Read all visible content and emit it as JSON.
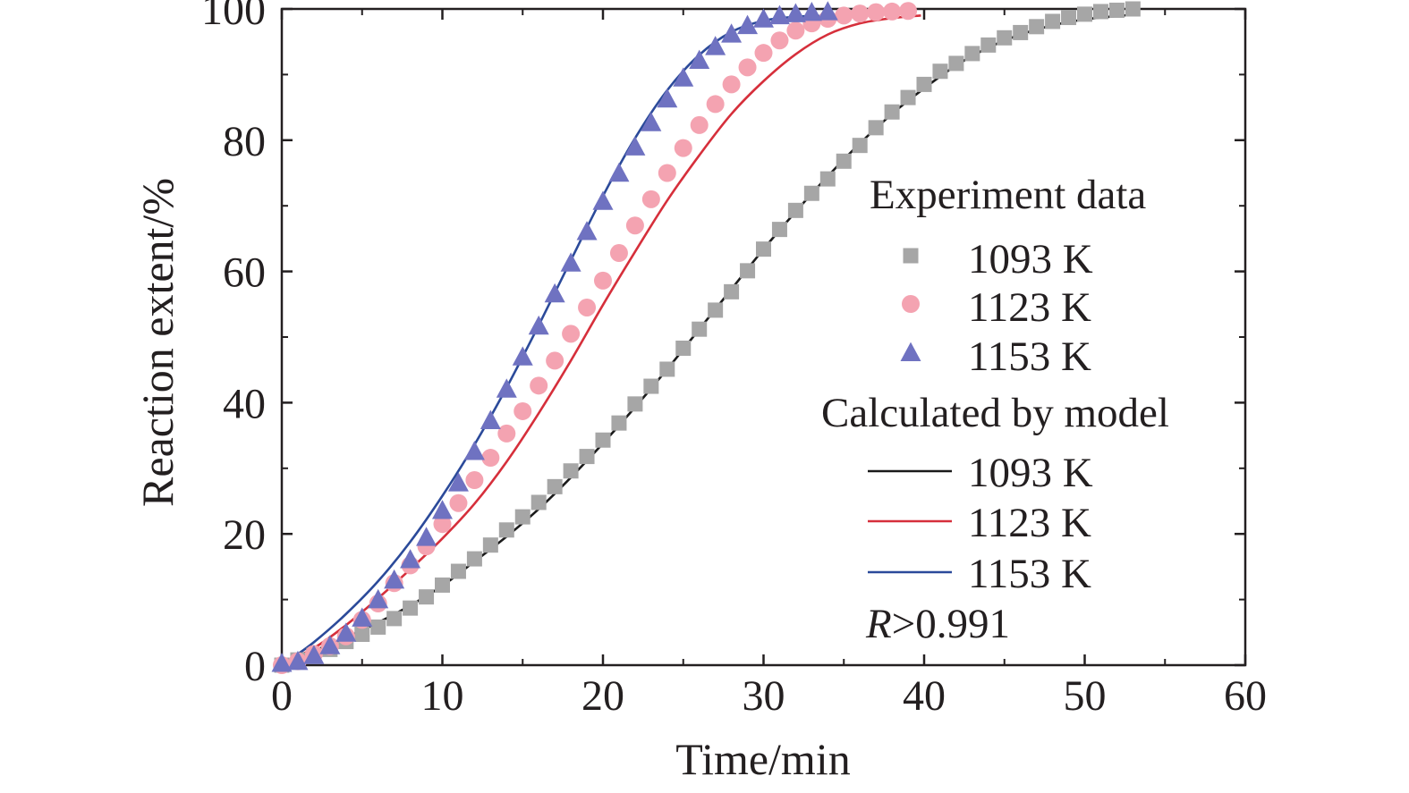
{
  "chart_data": {
    "type": "scatter",
    "xlabel": "Time/min",
    "ylabel": "Reaction extent/%",
    "xlim": [
      0,
      60
    ],
    "ylim": [
      0,
      100
    ],
    "xticks": [
      0,
      10,
      20,
      30,
      40,
      50,
      60
    ],
    "yticks": [
      0,
      20,
      40,
      60,
      80,
      100
    ],
    "grid": false,
    "legend_position": "right",
    "legend": {
      "experiment_heading": "Experiment data",
      "model_heading": "Calculated by model",
      "r_symbol": "R",
      "r_value": ">0.991"
    },
    "experiment_series": [
      {
        "name": "1093 K",
        "marker": "square",
        "color": "#a6a6a6",
        "x": [
          0,
          1,
          2,
          3,
          4,
          5,
          6,
          7,
          8,
          9,
          10,
          11,
          12,
          13,
          14,
          15,
          16,
          17,
          18,
          19,
          20,
          21,
          22,
          23,
          24,
          25,
          26,
          27,
          28,
          29,
          30,
          31,
          32,
          33,
          34,
          35,
          36,
          37,
          38,
          39,
          40,
          41,
          42,
          43,
          44,
          45,
          46,
          47,
          48,
          49,
          50,
          51,
          52,
          53
        ],
        "y": [
          0,
          0.8,
          1.5,
          2.4,
          3.6,
          4.7,
          5.8,
          7.1,
          8.7,
          10.4,
          12.2,
          14.3,
          16.2,
          18.3,
          20.6,
          22.6,
          24.8,
          27.2,
          29.6,
          31.8,
          34.3,
          36.9,
          39.8,
          42.5,
          45.1,
          48.3,
          51.2,
          54.1,
          56.9,
          60.1,
          63.4,
          66.4,
          69.3,
          71.9,
          74.1,
          76.8,
          79.2,
          81.9,
          84.3,
          86.5,
          88.5,
          90.5,
          91.7,
          93.2,
          94.5,
          95.6,
          96.4,
          97.3,
          98.1,
          98.7,
          99.2,
          99.6,
          99.8,
          100
        ]
      },
      {
        "name": "1123 K",
        "marker": "circle",
        "color": "#f4a3b1",
        "x": [
          0,
          1,
          2,
          3,
          4,
          5,
          6,
          7,
          8,
          9,
          10,
          11,
          12,
          13,
          14,
          15,
          16,
          17,
          18,
          19,
          20,
          21,
          22,
          23,
          24,
          25,
          26,
          27,
          28,
          29,
          30,
          31,
          32,
          33,
          34,
          35,
          36,
          37,
          38,
          39
        ],
        "y": [
          0,
          0.6,
          1.7,
          2.9,
          4.4,
          6.9,
          9.4,
          12.5,
          15.2,
          18.1,
          21.5,
          24.7,
          28.2,
          31.6,
          35.3,
          38.7,
          42.6,
          46.4,
          50.5,
          54.5,
          58.6,
          62.8,
          67,
          71,
          75,
          78.8,
          82.3,
          85.5,
          88.5,
          91.1,
          93.3,
          95.2,
          96.7,
          97.8,
          98.5,
          99,
          99.3,
          99.5,
          99.6,
          99.7
        ]
      },
      {
        "name": "1153 K",
        "marker": "triangle",
        "color": "#6f72c1",
        "x": [
          0,
          1,
          2,
          3,
          4,
          5,
          6,
          7,
          8,
          9,
          10,
          11,
          12,
          13,
          14,
          15,
          16,
          17,
          18,
          19,
          20,
          21,
          22,
          23,
          24,
          25,
          26,
          27,
          28,
          29,
          30,
          31,
          32,
          33,
          34
        ],
        "y": [
          0.2,
          0.5,
          1.4,
          2.9,
          4.8,
          7.1,
          9.9,
          12.9,
          16,
          19.4,
          23.5,
          27.7,
          32.5,
          37.2,
          42,
          46.9,
          51.6,
          56.5,
          61.2,
          66,
          70.6,
          74.9,
          78.9,
          82.6,
          86.2,
          89.4,
          92.1,
          94.2,
          96.1,
          97.4,
          98.4,
          98.9,
          99.2,
          99.4,
          99.5
        ]
      }
    ],
    "model_series": [
      {
        "name": "1093 K",
        "color": "#1a1a1a",
        "x": [
          0.6,
          2,
          4,
          6,
          8,
          10,
          12,
          14,
          16,
          18,
          20,
          22,
          24,
          26,
          28,
          30,
          32,
          34,
          36,
          38,
          40,
          42,
          44,
          46,
          48,
          50,
          52,
          53.4
        ],
        "y": [
          1,
          2.2,
          4.2,
          6.5,
          9.1,
          12.1,
          15.8,
          19.6,
          23.8,
          28.6,
          33.8,
          39.3,
          45.1,
          51.2,
          57.3,
          63.4,
          69.1,
          74.5,
          79.5,
          84,
          87.9,
          91.4,
          94.1,
          96.1,
          97.5,
          98.4,
          98.9,
          99.2
        ]
      },
      {
        "name": "1123 K",
        "color": "#d62f3b",
        "x": [
          0.6,
          2,
          4,
          6,
          8,
          10,
          12,
          14,
          16,
          18,
          20,
          22,
          24,
          26,
          28,
          30,
          32,
          34,
          36,
          38,
          39.8
        ],
        "y": [
          1,
          2.6,
          6.1,
          10.2,
          14.6,
          19.3,
          24.6,
          31,
          38.4,
          46.4,
          54.9,
          63,
          70.8,
          77.7,
          84,
          89,
          93.1,
          96.1,
          97.8,
          98.6,
          99
        ]
      },
      {
        "name": "1153 K",
        "color": "#2b4a9a",
        "x": [
          0.6,
          2,
          4,
          6,
          8,
          10,
          12,
          14,
          16,
          18,
          20,
          22,
          24,
          26,
          28,
          30,
          32,
          33,
          35
        ],
        "y": [
          1,
          3.5,
          7.8,
          12.8,
          18.8,
          25.8,
          33.6,
          42.3,
          51.8,
          61.7,
          71.5,
          80.3,
          87.6,
          93,
          96.5,
          98.2,
          98.8,
          98.9,
          99
        ]
      }
    ]
  }
}
